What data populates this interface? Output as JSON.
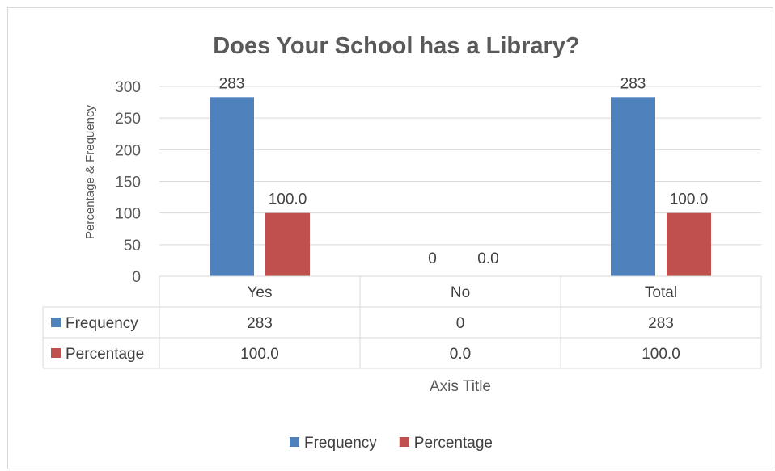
{
  "chart_data": {
    "type": "bar",
    "title": "Does Your School has a Library?",
    "ylabel": "Percentage & Frequency",
    "xlabel": "Axis Title",
    "categories": [
      "Yes",
      "No",
      "Total"
    ],
    "ylim": [
      0,
      300
    ],
    "yticks": [
      0,
      50,
      100,
      150,
      200,
      250,
      300
    ],
    "gridlines": true,
    "legend_position": "bottom",
    "series": [
      {
        "name": "Frequency",
        "values": [
          283,
          0,
          283
        ],
        "labels": [
          "283",
          "0",
          "283"
        ],
        "color": "#4f81bd"
      },
      {
        "name": "Percentage",
        "values": [
          100,
          0,
          100
        ],
        "labels": [
          "100.0",
          "0.0",
          "100.0"
        ],
        "color": "#c0504d"
      }
    ]
  }
}
